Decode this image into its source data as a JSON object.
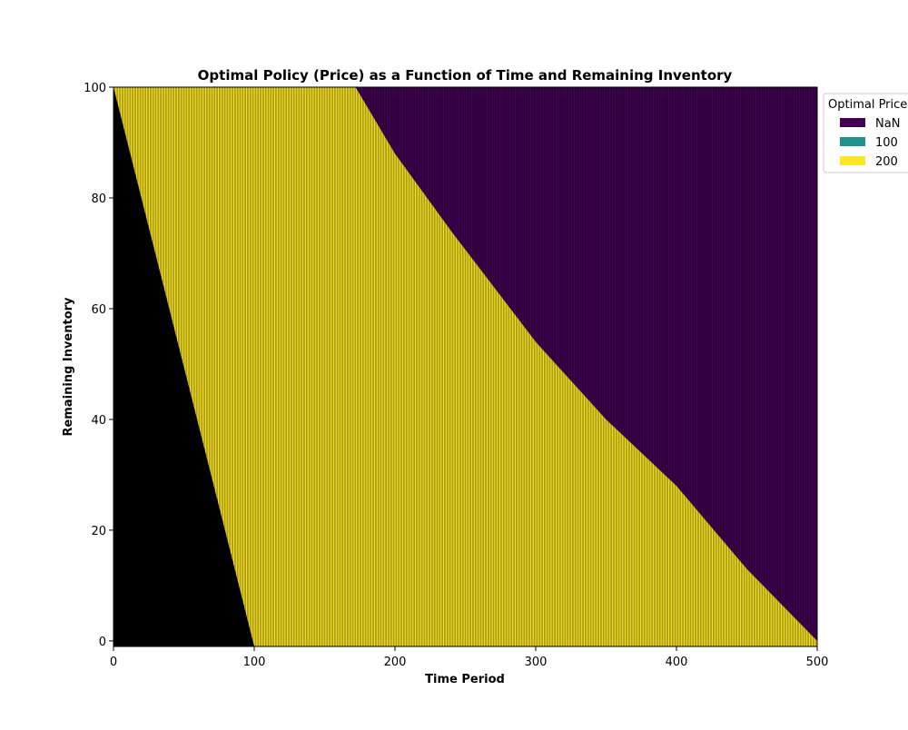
{
  "chart_data": {
    "type": "heatmap",
    "title": "Optimal Policy (Price) as a Function of Time and Remaining Inventory",
    "xlabel": "Time Period",
    "ylabel": "Remaining Inventory",
    "xlim": [
      0,
      500
    ],
    "ylim": [
      -1,
      100
    ],
    "x_ticks": [
      0,
      100,
      200,
      300,
      400,
      500
    ],
    "y_ticks": [
      0,
      20,
      40,
      60,
      80,
      100
    ],
    "legend": {
      "title": "Optimal Price",
      "placement": "upper-right-outside",
      "entries": [
        {
          "label": "NaN",
          "color": "#440154"
        },
        {
          "label": "100",
          "color": "#21918c"
        },
        {
          "label": "200",
          "color": "#fde725"
        }
      ]
    },
    "regions": [
      {
        "value": "undefined",
        "color": "#000000",
        "boundary": [
          [
            0,
            100
          ],
          [
            100,
            -1
          ]
        ]
      },
      {
        "value": "200",
        "color": "#fde725",
        "between": "undefined and NaN"
      },
      {
        "value": "NaN",
        "color": "#440154",
        "boundary": [
          [
            172,
            100
          ],
          [
            200,
            88
          ],
          [
            240,
            74
          ],
          [
            300,
            54
          ],
          [
            350,
            40
          ],
          [
            400,
            28
          ],
          [
            450,
            13
          ],
          [
            500,
            0
          ]
        ]
      }
    ],
    "cell_edge_color": "#000000"
  }
}
